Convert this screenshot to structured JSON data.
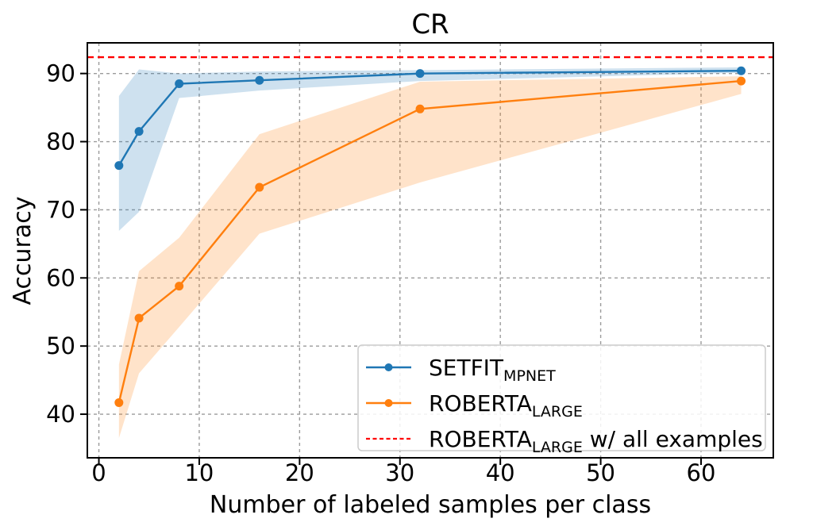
{
  "figure": {
    "title": "CR",
    "xlabel": "Number of labeled samples per class",
    "ylabel": "Accuracy"
  },
  "colors": {
    "setfit_blue": "#1f77b4",
    "roberta_orange": "#ff7f0e",
    "reference_red": "#ff0000",
    "grid_gray": "#9b9b9b",
    "frame_black": "#000000",
    "legend_border": "#cccccc"
  },
  "chart_data": {
    "type": "line",
    "title": "CR",
    "xlabel": "Number of labeled samples per class",
    "ylabel": "Accuracy",
    "x": [
      2,
      4,
      8,
      16,
      32,
      64
    ],
    "xticks": [
      0,
      10,
      20,
      30,
      40,
      50,
      60
    ],
    "yticks": [
      40,
      50,
      60,
      70,
      80,
      90
    ],
    "xlim": [
      -1.15,
      67.2
    ],
    "ylim": [
      33.6,
      94.5
    ],
    "grid": true,
    "legend_position": "lower right",
    "series": [
      {
        "name": "setfit-mpnet",
        "legend": {
          "main": "SETFIT",
          "sub": "MPNET",
          "suffix": ""
        },
        "color": "#1f77b4",
        "marker": "circle",
        "line_style": "solid",
        "values": [
          76.5,
          81.5,
          88.5,
          89.0,
          90.0,
          90.4
        ],
        "band_upper": [
          86.7,
          90.6,
          90.0,
          90.3,
          90.5,
          90.9
        ],
        "band_lower": [
          66.9,
          69.7,
          86.4,
          87.5,
          88.9,
          90.1
        ]
      },
      {
        "name": "roberta-large",
        "legend": {
          "main": "ROBERTA",
          "sub": "LARGE",
          "suffix": ""
        },
        "color": "#ff7f0e",
        "marker": "circle",
        "line_style": "solid",
        "values": [
          41.7,
          54.1,
          58.8,
          73.3,
          84.8,
          88.9
        ],
        "band_upper": [
          47.3,
          61.0,
          65.9,
          81.1,
          88.8,
          89.6
        ],
        "band_lower": [
          36.5,
          46.0,
          52.8,
          66.5,
          74.0,
          87.0
        ]
      }
    ],
    "reference_line": {
      "name": "roberta-large-all-examples",
      "legend": {
        "main": "ROBERTA",
        "sub": "LARGE",
        "suffix": " w/ all examples"
      },
      "color": "#ff0000",
      "line_style": "dashed",
      "value": 92.4
    }
  }
}
